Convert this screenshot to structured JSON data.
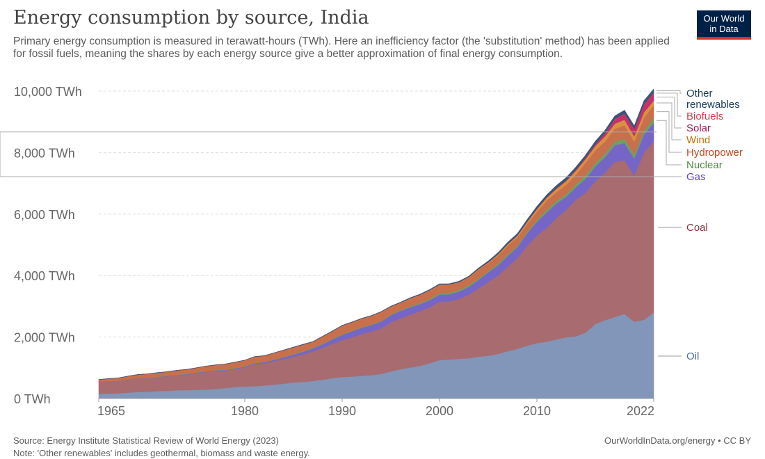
{
  "title": "Energy consumption by source, India",
  "subtitle": "Primary energy consumption is measured in terawatt-hours (TWh). Here an inefficiency factor (the 'substitution' method) has been applied for fossil fuels, meaning the shares by each energy source give a better approximation of final energy consumption.",
  "logo": {
    "line1": "Our World",
    "line2": "in Data"
  },
  "footer": {
    "source": "Source: Energy Institute Statistical Review of World Energy (2023)",
    "note": "Note: 'Other renewables' includes geothermal, biomass and waste energy.",
    "credit": "OurWorldInData.org/energy • CC BY"
  },
  "chart_data": {
    "type": "area",
    "stacked": true,
    "title": "Energy consumption by source, India",
    "ylim": [
      0,
      10000
    ],
    "xlim": [
      1965,
      2022
    ],
    "y_ticks": [
      0,
      2000,
      4000,
      6000,
      8000,
      10000
    ],
    "y_tick_labels": [
      "0 TWh",
      "2,000 TWh",
      "4,000 TWh",
      "6,000 TWh",
      "8,000 TWh",
      "10,000 TWh"
    ],
    "x_ticks": [
      1965,
      1980,
      1990,
      2000,
      2010,
      2022
    ],
    "x_tick_labels": [
      "1965",
      "1980",
      "1990",
      "2000",
      "2010",
      "2022"
    ],
    "grid": "horizontal dashed",
    "legend": "right, inline labels",
    "x_start": 1965,
    "series": [
      {
        "name": "Oil",
        "color": "#8196b9",
        "label_color": "#4a6ea8",
        "values": [
          150,
          160,
          170,
          190,
          210,
          220,
          240,
          250,
          270,
          270,
          280,
          290,
          310,
          340,
          370,
          390,
          400,
          420,
          450,
          480,
          520,
          540,
          570,
          610,
          660,
          700,
          710,
          740,
          760,
          800,
          880,
          950,
          1010,
          1060,
          1150,
          1250,
          1270,
          1290,
          1310,
          1360,
          1390,
          1450,
          1540,
          1620,
          1720,
          1800,
          1850,
          1920,
          1990,
          2020,
          2150,
          2420,
          2550,
          2650,
          2750,
          2500,
          2560,
          2800
        ]
      },
      {
        "name": "Coal",
        "color": "#a86b70",
        "label_color": "#8b2f38",
        "values": [
          390,
          400,
          400,
          430,
          450,
          440,
          450,
          470,
          480,
          510,
          540,
          570,
          580,
          570,
          590,
          620,
          720,
          720,
          760,
          800,
          840,
          900,
          960,
          1040,
          1120,
          1200,
          1280,
          1360,
          1420,
          1480,
          1600,
          1660,
          1720,
          1780,
          1820,
          1900,
          1890,
          1950,
          2070,
          2220,
          2400,
          2550,
          2750,
          2950,
          3250,
          3500,
          3700,
          3950,
          4150,
          4450,
          4550,
          4650,
          4800,
          5050,
          5000,
          4750,
          5450,
          5570
        ]
      },
      {
        "name": "Gas",
        "color": "#7565c6",
        "label_color": "#5b45d6",
        "values": [
          5,
          5,
          5,
          5,
          5,
          10,
          10,
          10,
          15,
          15,
          15,
          20,
          20,
          20,
          20,
          25,
          30,
          40,
          50,
          60,
          70,
          80,
          100,
          120,
          140,
          170,
          190,
          200,
          210,
          220,
          230,
          240,
          240,
          230,
          230,
          230,
          230,
          240,
          250,
          280,
          310,
          330,
          350,
          350,
          400,
          450,
          500,
          470,
          420,
          400,
          450,
          480,
          500,
          540,
          560,
          560,
          580,
          600
        ]
      },
      {
        "name": "Nuclear",
        "color": "#6ea063",
        "label_color": "#4c8a3d",
        "values": [
          0,
          0,
          0,
          0,
          2,
          8,
          8,
          8,
          8,
          8,
          10,
          10,
          10,
          10,
          10,
          10,
          10,
          10,
          12,
          14,
          15,
          16,
          16,
          18,
          18,
          20,
          20,
          20,
          20,
          18,
          25,
          25,
          30,
          35,
          40,
          45,
          50,
          55,
          55,
          50,
          50,
          50,
          50,
          45,
          50,
          70,
          90,
          90,
          90,
          100,
          110,
          120,
          120,
          120,
          140,
          130,
          130,
          150
        ]
      },
      {
        "name": "Hydropower",
        "color": "#c8704b",
        "label_color": "#c34a17",
        "values": [
          70,
          80,
          90,
          100,
          110,
          120,
          130,
          130,
          140,
          140,
          150,
          160,
          170,
          180,
          190,
          200,
          200,
          200,
          210,
          220,
          220,
          220,
          200,
          230,
          250,
          280,
          280,
          280,
          280,
          300,
          250,
          240,
          250,
          260,
          280,
          270,
          260,
          240,
          250,
          280,
          250,
          270,
          280,
          280,
          260,
          260,
          300,
          280,
          300,
          310,
          410,
          400,
          400,
          410,
          440,
          420,
          410,
          420
        ]
      },
      {
        "name": "Wind",
        "color": "#d9913e",
        "label_color": "#c06d00",
        "values": [
          0,
          0,
          0,
          0,
          0,
          0,
          0,
          0,
          0,
          0,
          0,
          0,
          0,
          0,
          0,
          0,
          0,
          0,
          0,
          0,
          0,
          0,
          0,
          0,
          0,
          0,
          0,
          0,
          0,
          0,
          5,
          5,
          10,
          10,
          10,
          10,
          10,
          10,
          15,
          20,
          30,
          40,
          50,
          60,
          70,
          80,
          90,
          110,
          120,
          130,
          120,
          140,
          160,
          170,
          180,
          170,
          180,
          150
        ]
      },
      {
        "name": "Solar",
        "color": "#c6306e",
        "label_color": "#a2195b",
        "values": [
          0,
          0,
          0,
          0,
          0,
          0,
          0,
          0,
          0,
          0,
          0,
          0,
          0,
          0,
          0,
          0,
          0,
          0,
          0,
          0,
          0,
          0,
          0,
          0,
          0,
          0,
          0,
          0,
          0,
          0,
          0,
          0,
          0,
          0,
          0,
          0,
          0,
          0,
          0,
          0,
          0,
          0,
          0,
          0,
          0,
          1,
          3,
          5,
          10,
          15,
          20,
          40,
          80,
          130,
          170,
          200,
          230,
          230
        ]
      },
      {
        "name": "Biofuels",
        "color": "#d73c50",
        "label_color": "#d73c50",
        "values": [
          0,
          0,
          0,
          0,
          0,
          0,
          0,
          0,
          0,
          0,
          0,
          0,
          0,
          0,
          0,
          0,
          0,
          0,
          0,
          0,
          0,
          0,
          0,
          0,
          0,
          0,
          0,
          0,
          0,
          0,
          0,
          0,
          0,
          0,
          0,
          0,
          0,
          0,
          0,
          0,
          2,
          2,
          2,
          3,
          5,
          10,
          10,
          15,
          15,
          15,
          20,
          20,
          20,
          25,
          30,
          30,
          30,
          30
        ]
      },
      {
        "name": "Other renewables",
        "color": "#3b557a",
        "label_color": "#183a63",
        "values": [
          5,
          5,
          5,
          5,
          5,
          5,
          5,
          5,
          5,
          5,
          5,
          5,
          5,
          5,
          5,
          5,
          5,
          5,
          5,
          5,
          10,
          10,
          10,
          10,
          10,
          10,
          10,
          10,
          10,
          10,
          15,
          15,
          20,
          20,
          20,
          25,
          25,
          30,
          30,
          35,
          40,
          50,
          60,
          60,
          70,
          80,
          80,
          90,
          90,
          90,
          90,
          100,
          100,
          100,
          110,
          110,
          120,
          120
        ]
      }
    ]
  }
}
